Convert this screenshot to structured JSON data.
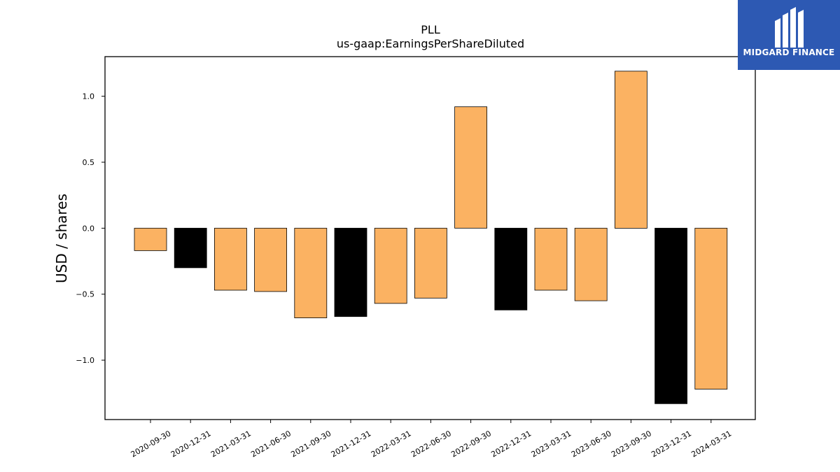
{
  "logo": {
    "brand": "MIDGARD FINANCE"
  },
  "colors": {
    "orange": "#fbb262",
    "black": "#000000",
    "logo_bg": "#2d59b3"
  },
  "chart_data": {
    "type": "bar",
    "title": "PLL",
    "subtitle": "us-gaap:EarningsPerShareDiluted",
    "xlabel": "",
    "ylabel": "USD / shares",
    "ylim": [
      -1.45,
      1.3
    ],
    "yticks": [
      1.0,
      0.5,
      0.0,
      -0.5,
      -1.0
    ],
    "ytick_labels": [
      "1.0",
      "0.5",
      "0.0",
      "−0.5",
      "−1.0"
    ],
    "grid": false,
    "categories": [
      "2020-09-30",
      "2020-12-31",
      "2021-03-31",
      "2021-06-30",
      "2021-09-30",
      "2021-12-31",
      "2022-03-31",
      "2022-06-30",
      "2022-09-30",
      "2022-12-31",
      "2023-03-31",
      "2023-06-30",
      "2023-09-30",
      "2023-12-31",
      "2024-03-31"
    ],
    "values": [
      -0.17,
      -0.3,
      -0.47,
      -0.48,
      -0.68,
      -0.67,
      -0.57,
      -0.53,
      0.92,
      -0.62,
      -0.47,
      -0.55,
      1.19,
      -1.33,
      -1.22
    ],
    "bar_colors": [
      "orange",
      "black",
      "orange",
      "orange",
      "orange",
      "black",
      "orange",
      "orange",
      "orange",
      "black",
      "orange",
      "orange",
      "orange",
      "black",
      "orange"
    ]
  }
}
